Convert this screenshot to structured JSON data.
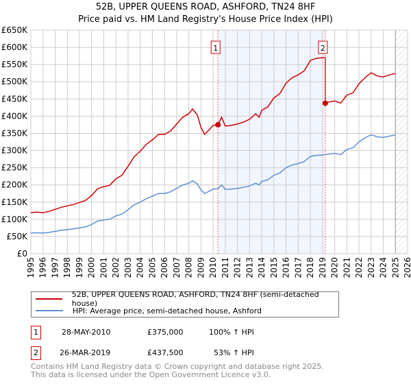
{
  "chart_data": {
    "type": "line",
    "title": "52B, UPPER QUEENS ROAD, ASHFORD, TN24 8HF",
    "subtitle": "Price paid vs. HM Land Registry's House Price Index (HPI)",
    "xlim": [
      1995,
      2026
    ],
    "ylim": [
      0,
      650000
    ],
    "x_ticks": [
      "1995",
      "1996",
      "1997",
      "1998",
      "1999",
      "2000",
      "2001",
      "2002",
      "2003",
      "2004",
      "2005",
      "2006",
      "2007",
      "2008",
      "2009",
      "2010",
      "2011",
      "2012",
      "2013",
      "2014",
      "2015",
      "2016",
      "2017",
      "2018",
      "2019",
      "2020",
      "2021",
      "2022",
      "2023",
      "2024",
      "2025",
      "2026"
    ],
    "y_ticks": [
      "£0",
      "£50K",
      "£100K",
      "£150K",
      "£200K",
      "£250K",
      "£300K",
      "£350K",
      "£400K",
      "£450K",
      "£500K",
      "£550K",
      "£600K",
      "£650K"
    ],
    "grid": true,
    "shaded_range": [
      2010.4,
      2019.23
    ],
    "forecast_hatch_from": 2025.0,
    "series": [
      {
        "name": "52B, UPPER QUEENS ROAD, ASHFORD, TN24 8HF (semi-detached house)",
        "color": "#cc0000",
        "x": [
          1995,
          1995.5,
          1996,
          1996.5,
          1997,
          1997.5,
          1998,
          1998.5,
          1999,
          1999.5,
          2000,
          2000.5,
          2001,
          2001.5,
          2002,
          2002.5,
          2003,
          2003.5,
          2004,
          2004.5,
          2005,
          2005.5,
          2006,
          2006.5,
          2007,
          2007.5,
          2008,
          2008.3,
          2008.7,
          2009,
          2009.3,
          2009.7,
          2010,
          2010.4,
          2010.7,
          2011,
          2011.5,
          2012,
          2012.5,
          2013,
          2013.5,
          2013.8,
          2014,
          2014.5,
          2015,
          2015.5,
          2016,
          2016.5,
          2017,
          2017.5,
          2018,
          2018.5,
          2019,
          2019.23,
          2019.23,
          2019.5,
          2020,
          2020.5,
          2021,
          2021.5,
          2022,
          2022.5,
          2023,
          2023.5,
          2024,
          2024.5,
          2025
        ],
        "values": [
          119,
          121,
          119,
          123,
          129,
          135,
          139,
          143,
          149,
          155,
          169,
          189,
          195,
          199,
          218,
          228,
          254,
          282,
          298,
          318,
          331,
          347,
          347,
          357,
          377,
          397,
          407,
          421,
          403,
          367,
          347,
          361,
          373,
          375,
          397,
          371,
          373,
          377,
          383,
          391,
          407,
          397,
          417,
          427,
          453,
          466,
          496,
          512,
          520,
          532,
          562,
          568,
          570,
          570,
          437.5,
          441,
          444,
          438,
          461,
          468,
          494,
          512,
          526,
          517,
          514,
          520,
          524
        ]
      },
      {
        "name": "HPI: Average price, semi-detached house, Ashford",
        "color": "#5b8fd4",
        "x": [
          1995,
          1995.5,
          1996,
          1996.5,
          1997,
          1997.5,
          1998,
          1998.5,
          1999,
          1999.5,
          2000,
          2000.5,
          2001,
          2001.5,
          2002,
          2002.5,
          2003,
          2003.5,
          2004,
          2004.5,
          2005,
          2005.5,
          2006,
          2006.5,
          2007,
          2007.5,
          2008,
          2008.3,
          2008.7,
          2009,
          2009.3,
          2009.7,
          2010,
          2010.4,
          2010.7,
          2011,
          2011.5,
          2012,
          2012.5,
          2013,
          2013.5,
          2013.8,
          2014,
          2014.5,
          2015,
          2015.5,
          2016,
          2016.5,
          2017,
          2017.5,
          2018,
          2018.5,
          2019,
          2019.5,
          2020,
          2020.5,
          2021,
          2021.5,
          2022,
          2022.5,
          2023,
          2023.5,
          2024,
          2024.5,
          2025
        ],
        "values": [
          60,
          61,
          60,
          62,
          65,
          68,
          70,
          72,
          75,
          78,
          85,
          95,
          98,
          100,
          110,
          115,
          128,
          142,
          150,
          160,
          167,
          175,
          175,
          180,
          190,
          200,
          205,
          212,
          203,
          185,
          175,
          182,
          188,
          189,
          200,
          187,
          188,
          190,
          193,
          197,
          205,
          200,
          210,
          215,
          228,
          235,
          250,
          258,
          262,
          268,
          283,
          286,
          287,
          290,
          292,
          288,
          303,
          308,
          325,
          337,
          346,
          340,
          338,
          342,
          345
        ]
      }
    ],
    "value_unit": "thousands GBP",
    "sales": [
      {
        "label": "1",
        "x": 2010.4,
        "value": 375
      },
      {
        "label": "2",
        "x": 2019.23,
        "value": 437.5
      }
    ]
  },
  "legend": {
    "items": [
      "52B, UPPER QUEENS ROAD, ASHFORD, TN24 8HF (semi-detached house)",
      "HPI: Average price, semi-detached house, Ashford"
    ]
  },
  "sales_table": [
    {
      "num": "1",
      "date": "28-MAY-2010",
      "price": "£375,000",
      "hpi": "100% ↑ HPI"
    },
    {
      "num": "2",
      "date": "26-MAR-2019",
      "price": "£437,500",
      "hpi": "53% ↑ HPI"
    }
  ],
  "footer": {
    "line1": "Contains HM Land Registry data © Crown copyright and database right 2025.",
    "line2": "This data is licensed under the Open Government Licence v3.0."
  }
}
